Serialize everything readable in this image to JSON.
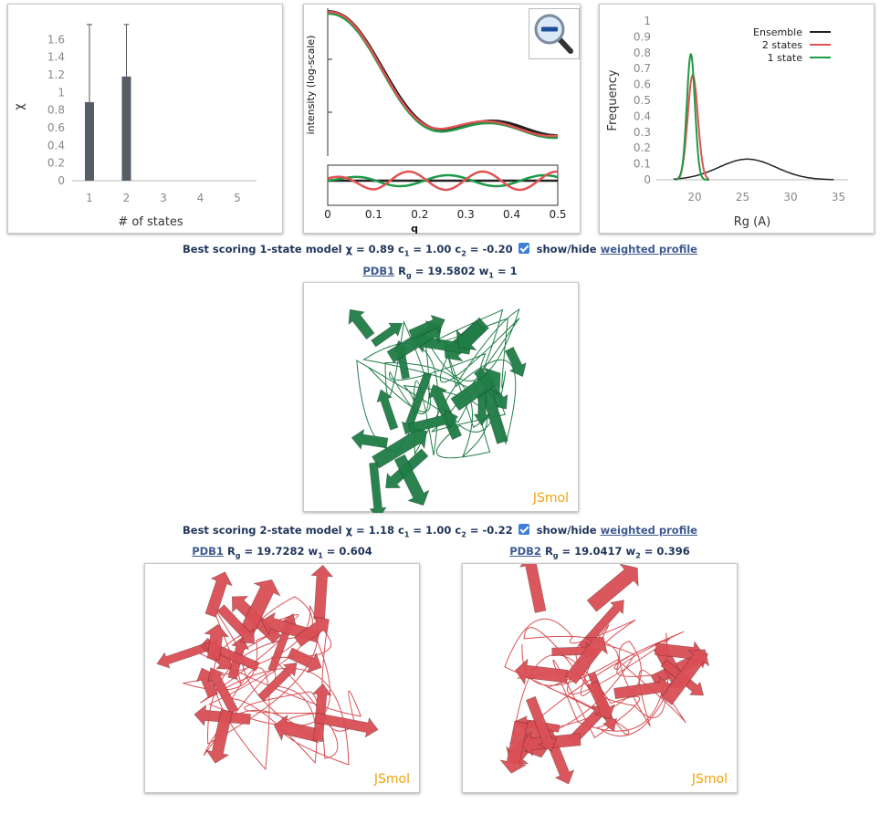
{
  "charts": {
    "chi": {
      "type": "bar",
      "categories": [
        "1",
        "2",
        "3",
        "4",
        "5"
      ],
      "values": [
        0.89,
        1.18,
        null,
        null,
        null
      ],
      "error_upper": [
        1.77,
        1.77,
        null,
        null,
        null
      ],
      "ylabel": "χ",
      "xlabel": "# of states",
      "yticks": [
        "0",
        "0.2",
        "0.4",
        "0.6",
        "0.8",
        "1",
        "1.2",
        "1.4",
        "1.6"
      ],
      "ylim": [
        0,
        1.8
      ],
      "bar_color": "#555d66"
    },
    "profile": {
      "type": "line",
      "ylabel": "intensity (log-scale)",
      "xlabel": "q",
      "xticks": [
        "0",
        "0.1",
        "0.2",
        "0.3",
        "0.4",
        "0.5"
      ],
      "xlim": [
        0,
        0.5
      ],
      "zoom_icon": "zoom-out-icon"
    },
    "rg": {
      "type": "line",
      "ylabel": "Frequency",
      "xlabel": "Rg (A)",
      "xticks": [
        "20",
        "25",
        "30",
        "35"
      ],
      "yticks": [
        "0",
        "0.1",
        "0.2",
        "0.3",
        "0.4",
        "0.5",
        "0.6",
        "0.7",
        "0.8",
        "0.9",
        "1"
      ],
      "xlim": [
        16,
        36
      ],
      "ylim": [
        0,
        1
      ],
      "legend": [
        "Ensemble",
        "2 states",
        "1 state"
      ],
      "colors": [
        "#222222",
        "#e05353",
        "#1e9a46"
      ]
    }
  },
  "chart_data": [
    {
      "type": "bar",
      "categories": [
        "1",
        "2",
        "3",
        "4",
        "5"
      ],
      "values": [
        0.89,
        1.18,
        null,
        null,
        null
      ],
      "xlabel": "# of states",
      "ylabel": "χ",
      "ylim": [
        0,
        1.8
      ]
    },
    {
      "type": "line",
      "x": [
        0,
        0.05,
        0.1,
        0.15,
        0.2,
        0.25,
        0.3,
        0.35,
        0.4,
        0.45,
        0.5
      ],
      "series": [
        {
          "name": "",
          "values": [
            1.0,
            0.9,
            0.6,
            0.4,
            0.32,
            0.25,
            0.22,
            0.21,
            0.2,
            0.2,
            0.19
          ]
        }
      ],
      "xlabel": "q",
      "ylabel": "intensity (log-scale)",
      "xlim": [
        0,
        0.5
      ]
    },
    {
      "type": "line",
      "x": [
        17,
        18,
        19,
        19.5,
        20,
        20.5,
        21,
        22,
        24,
        26,
        28,
        30,
        32,
        34
      ],
      "series": [
        {
          "name": "Ensemble",
          "values": [
            0,
            0,
            0.02,
            0.03,
            0.04,
            0.05,
            0.06,
            0.09,
            0.13,
            0.13,
            0.09,
            0.04,
            0.01,
            0
          ]
        },
        {
          "name": "2 states",
          "values": [
            0,
            0.05,
            0.4,
            0.62,
            0.66,
            0.4,
            0.08,
            0,
            0,
            0,
            0,
            0,
            0,
            0
          ]
        },
        {
          "name": "1 state",
          "values": [
            0,
            0.03,
            0.45,
            0.74,
            0.79,
            0.3,
            0.02,
            0,
            0,
            0,
            0,
            0,
            0,
            0
          ]
        }
      ],
      "xlabel": "Rg (A)",
      "ylabel": "Frequency",
      "xlim": [
        16,
        36
      ],
      "ylim": [
        0,
        1
      ]
    }
  ],
  "model1": {
    "pre": "Best scoring 1-state model χ = 0.89 c",
    "c1": " = 1.00 c",
    "c2": " = -0.20 ",
    "toggle": "show/hide",
    "link": "weighted profile",
    "pdb": "PDB1",
    "rg": " R",
    "rgval": " = 19.5802 w",
    "wval": " = 1",
    "viewer": "JSmol",
    "color": "#1f7d45"
  },
  "model2": {
    "pre": "Best scoring 2-state model χ = 1.18 c",
    "c1": " = 1.00 c",
    "c2": " = -0.22 ",
    "toggle": "show/hide",
    "link": "weighted profile",
    "pdb1": "PDB1",
    "rgval1": " = 19.7282 w",
    "wval1": " = 0.604",
    "pdb2": "PDB2",
    "rgval2": " = 19.0417 w",
    "wval2": " = 0.396",
    "viewer": "JSmol",
    "color": "#d94f55"
  }
}
